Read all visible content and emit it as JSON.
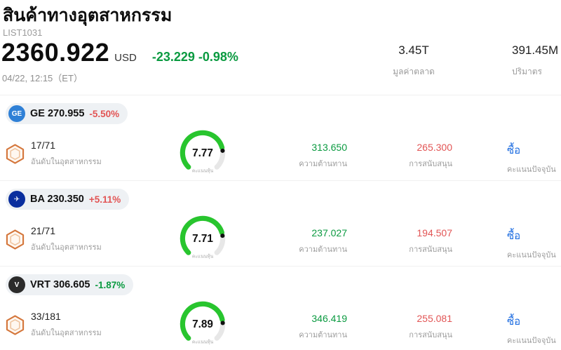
{
  "colors": {
    "green": "#0a9a40",
    "red": "#e25555",
    "blue": "#1d6ce0",
    "gauge_green": "#28c52e",
    "hex_badge": "#d4763b",
    "pill_bg": "#eef1f4"
  },
  "header": {
    "title": "สินค้าทางอุตสาหกรรม",
    "list_id": "LIST1031",
    "price": "2360.922",
    "currency": "USD",
    "change": "-23.229 -0.98%",
    "datetime": "04/22, 12:15（ET）",
    "market_cap": {
      "value": "3.45T",
      "label": "มูลค่าตลาด"
    },
    "volume": {
      "value": "391.45M",
      "label": "ปริมาตร"
    }
  },
  "rows": [
    {
      "ticker": "GE",
      "price": "270.955",
      "change": "-5.50%",
      "change_color": "#e25555",
      "logo_glyph": "GE",
      "logo_bg": "#2f80d6",
      "rank": "17/71",
      "rank_label": "อันดับในอุตสาหกรรม",
      "score": 7.77,
      "score_label": "คะแนนหุ้น",
      "resistance": "313.650",
      "resistance_label": "ความต้านทาน",
      "support": "265.300",
      "support_label": "การสนับสนุน",
      "signal": "ซื้อ",
      "signal_label": "คะแนนปัจจุบัน"
    },
    {
      "ticker": "BA",
      "price": "230.350",
      "change": "+5.11%",
      "change_color": "#e25555",
      "logo_glyph": "✈",
      "logo_bg": "#0a2e9e",
      "rank": "21/71",
      "rank_label": "อันดับในอุตสาหกรรม",
      "score": 7.71,
      "score_label": "คะแนนหุ้น",
      "resistance": "237.027",
      "resistance_label": "ความต้านทาน",
      "support": "194.507",
      "support_label": "การสนับสนุน",
      "signal": "ซื้อ",
      "signal_label": "คะแนนปัจจุบัน"
    },
    {
      "ticker": "VRT",
      "price": "306.605",
      "change": "-1.87%",
      "change_color": "#0a9a40",
      "logo_glyph": "V",
      "logo_bg": "#2b2b2b",
      "rank": "33/181",
      "rank_label": "อันดับในอุตสาหกรรม",
      "score": 7.89,
      "score_label": "คะแนนหุ้น",
      "resistance": "346.419",
      "resistance_label": "ความต้านทาน",
      "support": "255.081",
      "support_label": "การสนับสนุน",
      "signal": "ซื้อ",
      "signal_label": "คะแนนปัจจุบัน"
    }
  ]
}
